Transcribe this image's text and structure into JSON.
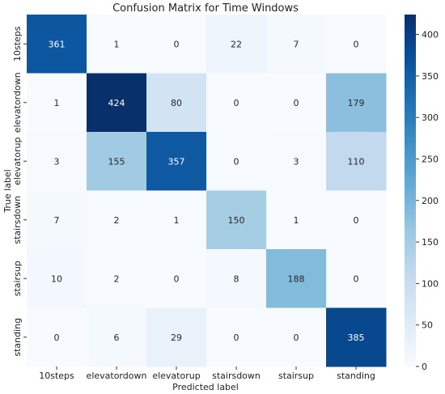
{
  "chart_data": {
    "type": "heatmap",
    "title": "Confusion Matrix for Time Windows",
    "xlabel": "Predicted label",
    "ylabel": "True label",
    "x_categories": [
      "10steps",
      "elevatordown",
      "elevatorup",
      "stairsdown",
      "stairsup",
      "standing"
    ],
    "y_categories": [
      "10steps",
      "elevatordown",
      "elevatorup",
      "stairsdown",
      "stairsup",
      "standing"
    ],
    "values": [
      [
        361,
        1,
        0,
        22,
        7,
        0
      ],
      [
        1,
        424,
        80,
        0,
        0,
        179
      ],
      [
        3,
        155,
        357,
        0,
        3,
        110
      ],
      [
        7,
        2,
        1,
        150,
        1,
        0
      ],
      [
        10,
        2,
        0,
        8,
        188,
        0
      ],
      [
        0,
        6,
        29,
        0,
        0,
        385
      ]
    ],
    "colorbar": {
      "min": 0,
      "max": 424,
      "ticks": [
        0,
        50,
        100,
        150,
        200,
        250,
        300,
        350,
        400
      ],
      "colormap": "Blues"
    }
  }
}
